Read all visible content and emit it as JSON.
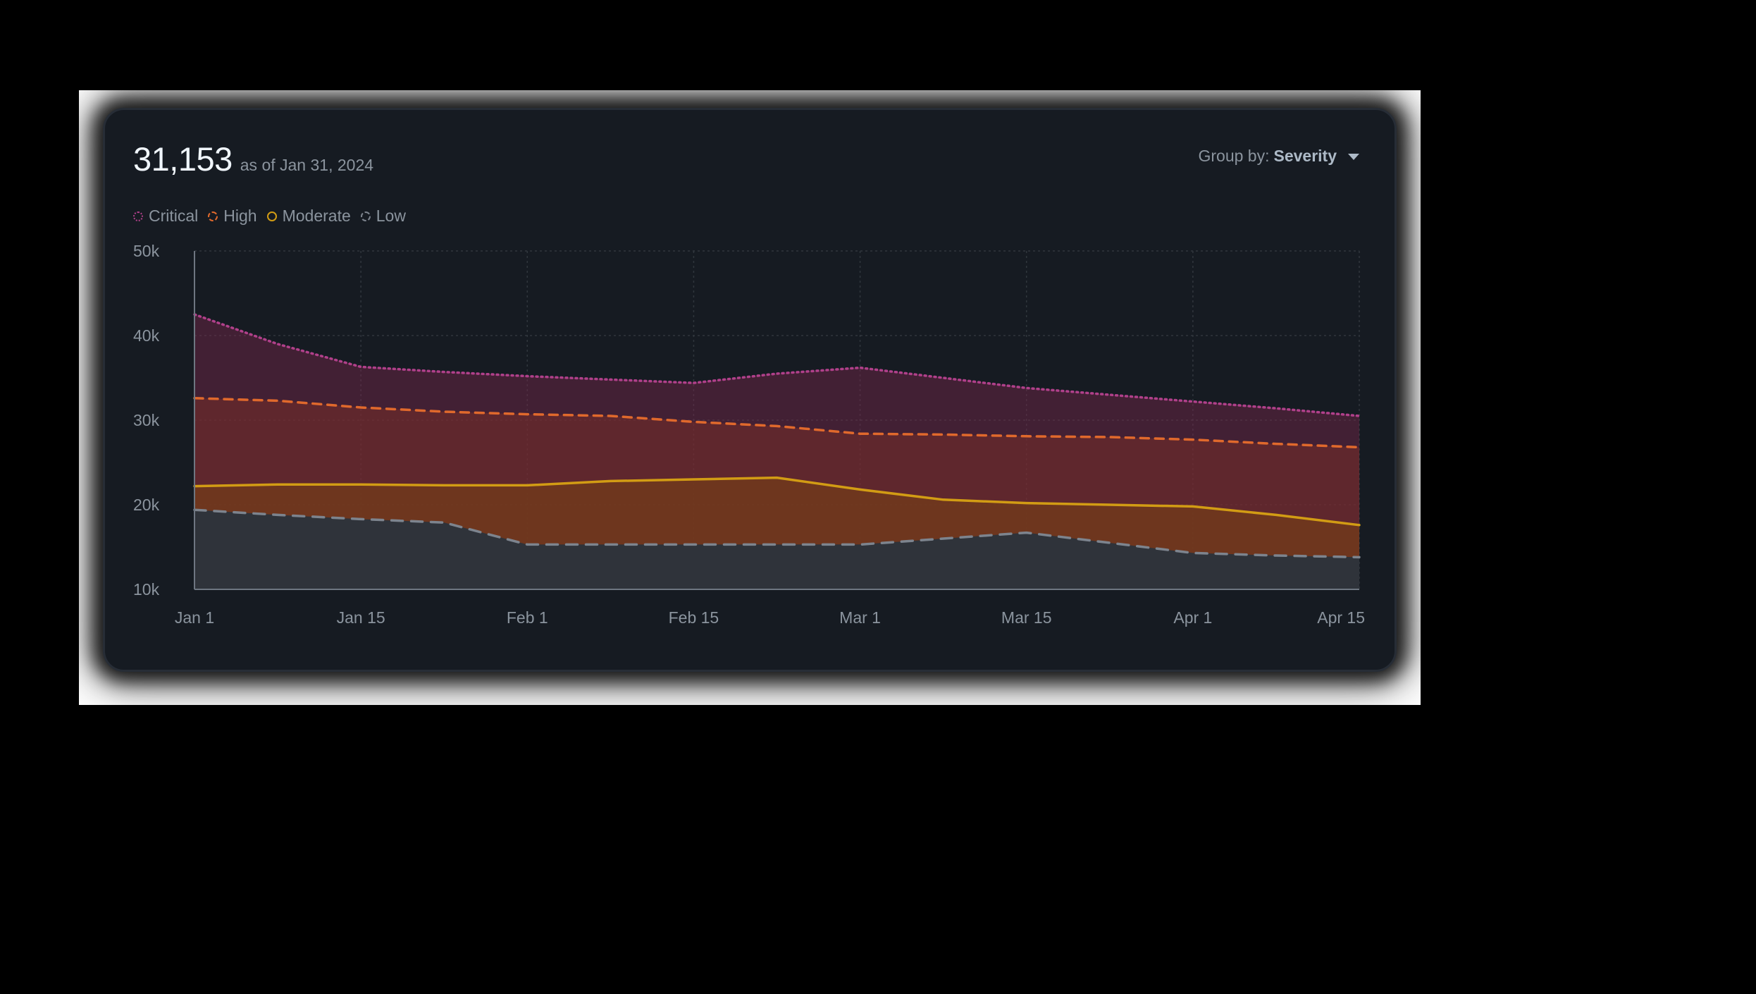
{
  "header": {
    "total": "31,153",
    "as_of": "as of Jan 31, 2024"
  },
  "group_by": {
    "label": "Group by:",
    "value": "Severity"
  },
  "colors": {
    "critical": "#b0408a",
    "high": "#e0692c",
    "moderate": "#d29c14",
    "low": "#7d848e",
    "grid": "#30363d",
    "axis": "#6e7681",
    "tick_text": "#8b949e"
  },
  "chart_data": {
    "type": "area",
    "x": [
      "Jan 1",
      "Jan 8",
      "Jan 15",
      "Jan 22",
      "Feb 1",
      "Feb 8",
      "Feb 15",
      "Feb 22",
      "Mar 1",
      "Mar 8",
      "Mar 15",
      "Mar 22",
      "Apr 1",
      "Apr 8",
      "Apr 15"
    ],
    "x_ticks": [
      "Jan 1",
      "Jan 15",
      "Feb 1",
      "Feb 15",
      "Mar 1",
      "Mar 15",
      "Apr 1",
      "Apr 15"
    ],
    "y_ticks": [
      "50k",
      "40k",
      "30k",
      "20k",
      "10k"
    ],
    "ylim": [
      10000,
      50000
    ],
    "grid": true,
    "legend_position": "top-left",
    "series": [
      {
        "name": "Critical",
        "key": "critical",
        "line_style": "dotted",
        "values": [
          42500,
          39000,
          36300,
          35700,
          35200,
          34800,
          34400,
          35500,
          36200,
          35000,
          33800,
          33000,
          32200,
          31400,
          30500
        ]
      },
      {
        "name": "High",
        "key": "high",
        "line_style": "dashed",
        "values": [
          32600,
          32300,
          31500,
          31000,
          30700,
          30500,
          29800,
          29300,
          28400,
          28300,
          28100,
          28000,
          27700,
          27200,
          26800
        ]
      },
      {
        "name": "Moderate",
        "key": "moderate",
        "line_style": "solid",
        "values": [
          22200,
          22400,
          22400,
          22300,
          22300,
          22800,
          23000,
          23200,
          21800,
          20600,
          20200,
          20000,
          19800,
          18800,
          17600
        ]
      },
      {
        "name": "Low",
        "key": "low",
        "line_style": "longdash",
        "values": [
          19400,
          18800,
          18300,
          17900,
          15300,
          15300,
          15300,
          15300,
          15300,
          16000,
          16700,
          15500,
          14300,
          14000,
          13800
        ]
      }
    ]
  }
}
